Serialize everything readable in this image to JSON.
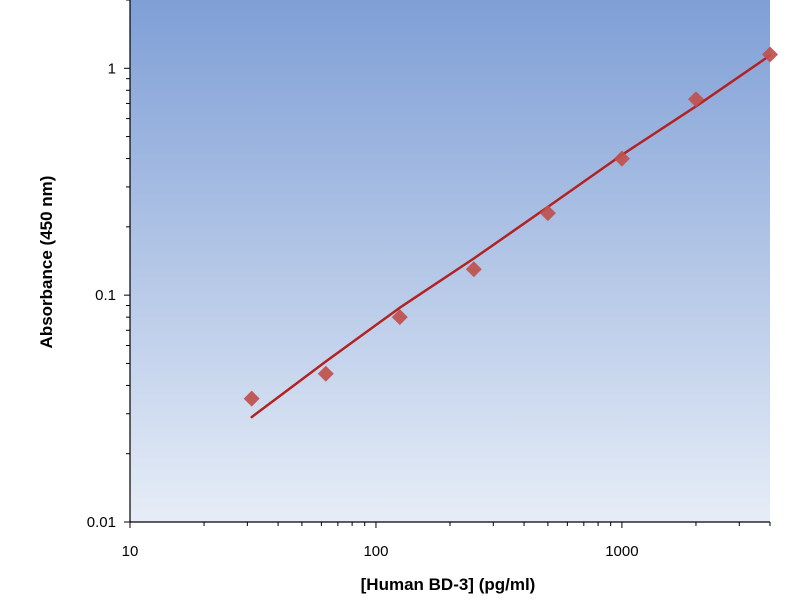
{
  "chart_data": {
    "type": "scatter",
    "xlabel": "[Human BD-3] (pg/ml)",
    "ylabel": "Absorbance (450 nm)",
    "x_scale": "log",
    "y_scale": "log",
    "xlim": [
      10,
      4000
    ],
    "ylim": [
      0.01,
      2
    ],
    "x_ticks": [
      {
        "value": 10,
        "label": "10"
      },
      {
        "value": 100,
        "label": "100"
      },
      {
        "value": 1000,
        "label": "1000"
      }
    ],
    "y_ticks": [
      {
        "value": 0.01,
        "label": "0.01"
      },
      {
        "value": 0.1,
        "label": "0.1"
      },
      {
        "value": 1,
        "label": "1"
      }
    ],
    "grid": false,
    "legend": "none",
    "series": [
      {
        "type": "scatter",
        "marker": "diamond",
        "color": "#c0504d",
        "x": [
          31.25,
          62.5,
          125,
          250,
          500,
          1000,
          2000,
          4000
        ],
        "y": [
          0.035,
          0.045,
          0.08,
          0.13,
          0.23,
          0.4,
          0.73,
          1.15
        ]
      },
      {
        "type": "line",
        "color": "#b22222",
        "x": [
          31.25,
          62.5,
          125,
          250,
          500,
          1000,
          2000,
          4000
        ],
        "y": [
          0.029,
          0.051,
          0.088,
          0.145,
          0.245,
          0.415,
          0.68,
          1.14
        ]
      }
    ],
    "colors": {
      "plot_bg_top": "#7f9fd6",
      "plot_bg_bottom": "#e6edf7",
      "axis": "#000000"
    }
  }
}
